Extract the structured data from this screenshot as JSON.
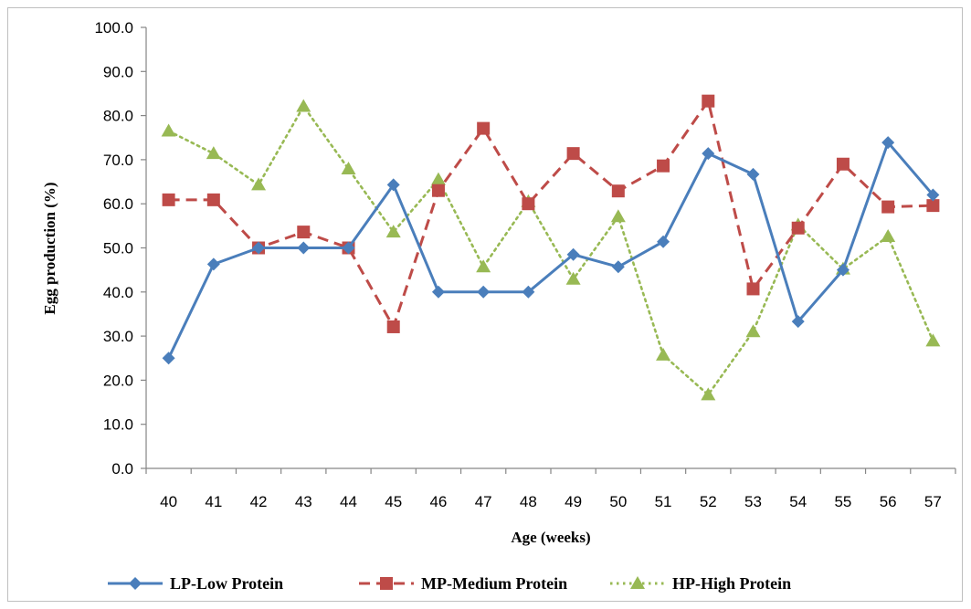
{
  "chart_data": {
    "type": "line",
    "title": "",
    "xlabel": "Age (weeks)",
    "ylabel": "Egg production  (%)",
    "x": [
      40,
      41,
      42,
      43,
      44,
      45,
      46,
      47,
      48,
      49,
      50,
      51,
      52,
      53,
      54,
      55,
      56,
      57
    ],
    "ylim": [
      0,
      100
    ],
    "yticks": [
      "0.0",
      "10.0",
      "20.0",
      "30.0",
      "40.0",
      "50.0",
      "60.0",
      "70.0",
      "80.0",
      "90.0",
      "100.0"
    ],
    "grid": false,
    "legend_position": "bottom",
    "series": [
      {
        "name": "LP-Low Protein",
        "color": "#4a7ebb",
        "line_style": "solid",
        "marker": "diamond",
        "values": [
          25.0,
          46.3,
          50.0,
          50.0,
          50.0,
          64.3,
          40.0,
          40.0,
          40.0,
          48.5,
          45.7,
          51.4,
          71.4,
          66.7,
          33.3,
          45.0,
          73.9,
          62.0
        ]
      },
      {
        "name": "MP-Medium Protein",
        "color": "#be4b48",
        "line_style": "dashed",
        "marker": "square",
        "values": [
          60.9,
          60.9,
          50.0,
          53.6,
          50.0,
          32.1,
          63.0,
          77.1,
          60.0,
          71.4,
          62.9,
          68.6,
          83.3,
          40.7,
          54.5,
          69.0,
          59.3,
          59.6
        ]
      },
      {
        "name": "HP-High Protein",
        "color": "#98b954",
        "line_style": "dotted",
        "marker": "triangle",
        "values": [
          76.5,
          71.4,
          64.3,
          82.1,
          67.9,
          53.6,
          65.5,
          45.7,
          60.5,
          42.9,
          57.1,
          25.7,
          16.7,
          31.0,
          55.2,
          45.2,
          52.6,
          28.9
        ]
      }
    ]
  }
}
